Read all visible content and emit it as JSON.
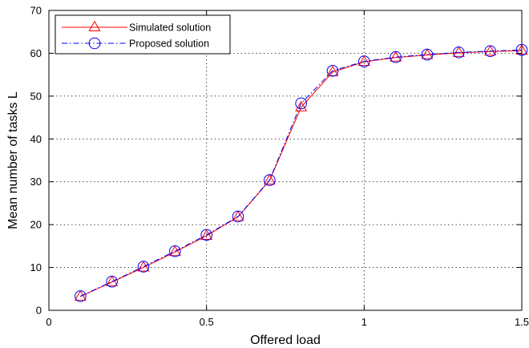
{
  "chart_data": {
    "type": "line",
    "title": "",
    "xlabel": "Offered load",
    "ylabel": "Mean number of tasks L",
    "xlim": [
      0,
      1.5
    ],
    "ylim": [
      0,
      70
    ],
    "xticks": [
      0,
      0.5,
      1,
      1.5
    ],
    "xtick_labels": [
      "0",
      "0.5",
      "1",
      "1.5"
    ],
    "yticks": [
      0,
      10,
      20,
      30,
      40,
      50,
      60,
      70
    ],
    "ytick_labels": [
      "0",
      "10",
      "20",
      "30",
      "40",
      "50",
      "60",
      "70"
    ],
    "grid": true,
    "legend_position": "top-left",
    "x": [
      0.1,
      0.2,
      0.3,
      0.4,
      0.5,
      0.6,
      0.7,
      0.8,
      0.9,
      1.0,
      1.1,
      1.2,
      1.3,
      1.4,
      1.5
    ],
    "series": [
      {
        "name": "Simulated solution",
        "color": "#ff0000",
        "marker": "triangle",
        "line_style": "solid",
        "values": [
          3.2,
          6.6,
          10.0,
          13.6,
          17.4,
          21.8,
          30.3,
          47.4,
          55.6,
          58.0,
          59.0,
          59.6,
          60.1,
          60.4,
          60.6
        ]
      },
      {
        "name": "Proposed solution",
        "color": "#0000ff",
        "marker": "circle",
        "line_style": "dashdot",
        "values": [
          3.3,
          6.7,
          10.2,
          13.8,
          17.6,
          21.9,
          30.4,
          48.3,
          55.9,
          58.1,
          59.1,
          59.7,
          60.2,
          60.5,
          60.8
        ]
      }
    ]
  }
}
